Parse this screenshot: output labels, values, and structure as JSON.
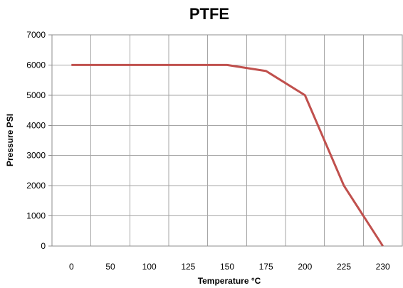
{
  "chart_data": {
    "type": "line",
    "title": "PTFE",
    "xlabel": "Temperature °C",
    "ylabel": "Pressure PSI",
    "categories": [
      "0",
      "50",
      "100",
      "125",
      "150",
      "175",
      "200",
      "225",
      "230"
    ],
    "ylim": [
      0,
      7000
    ],
    "yticks": [
      0,
      1000,
      2000,
      3000,
      4000,
      5000,
      6000,
      7000
    ],
    "grid": true,
    "series": [
      {
        "values": [
          6000,
          6000,
          6000,
          6000,
          6000,
          5800,
          5000,
          2000,
          0
        ],
        "color": "#c0504d"
      }
    ]
  }
}
